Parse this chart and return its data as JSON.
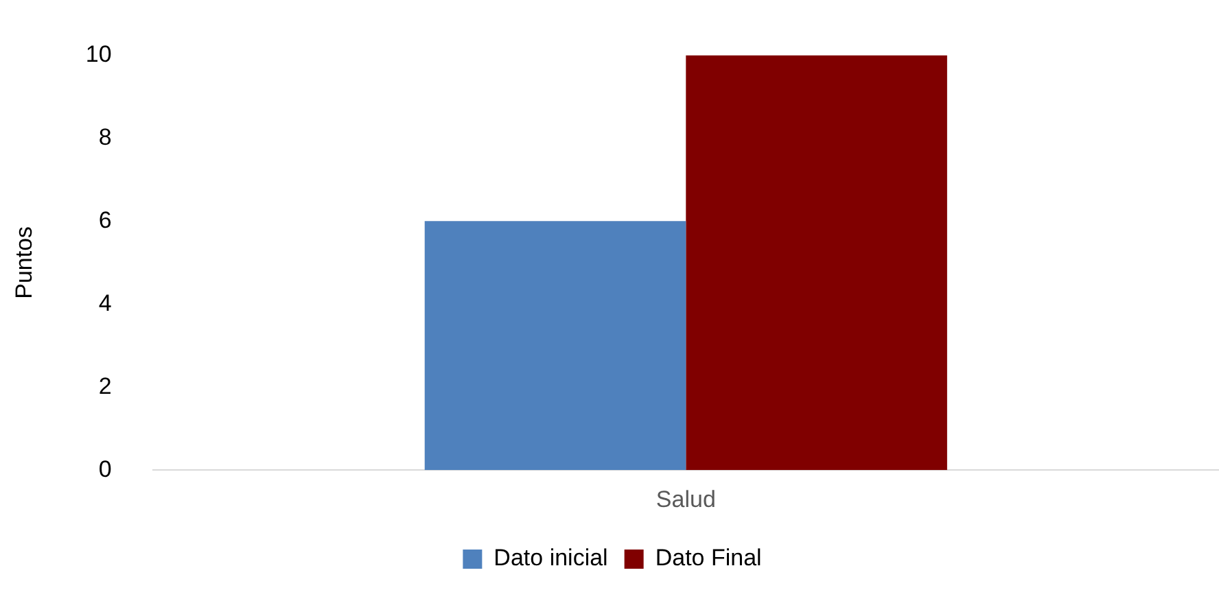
{
  "chart_data": {
    "type": "bar",
    "ylabel": "Puntos",
    "categories": [
      "Salud"
    ],
    "series": [
      {
        "name": "Dato inicial",
        "color": "#4f81bd",
        "values": [
          6
        ]
      },
      {
        "name": "Dato Final",
        "color": "#800000",
        "values": [
          10
        ]
      }
    ],
    "ylim": [
      0,
      10
    ],
    "yticks": [
      0,
      2,
      4,
      6,
      8,
      10
    ],
    "grid": false,
    "legend": "bottom"
  }
}
